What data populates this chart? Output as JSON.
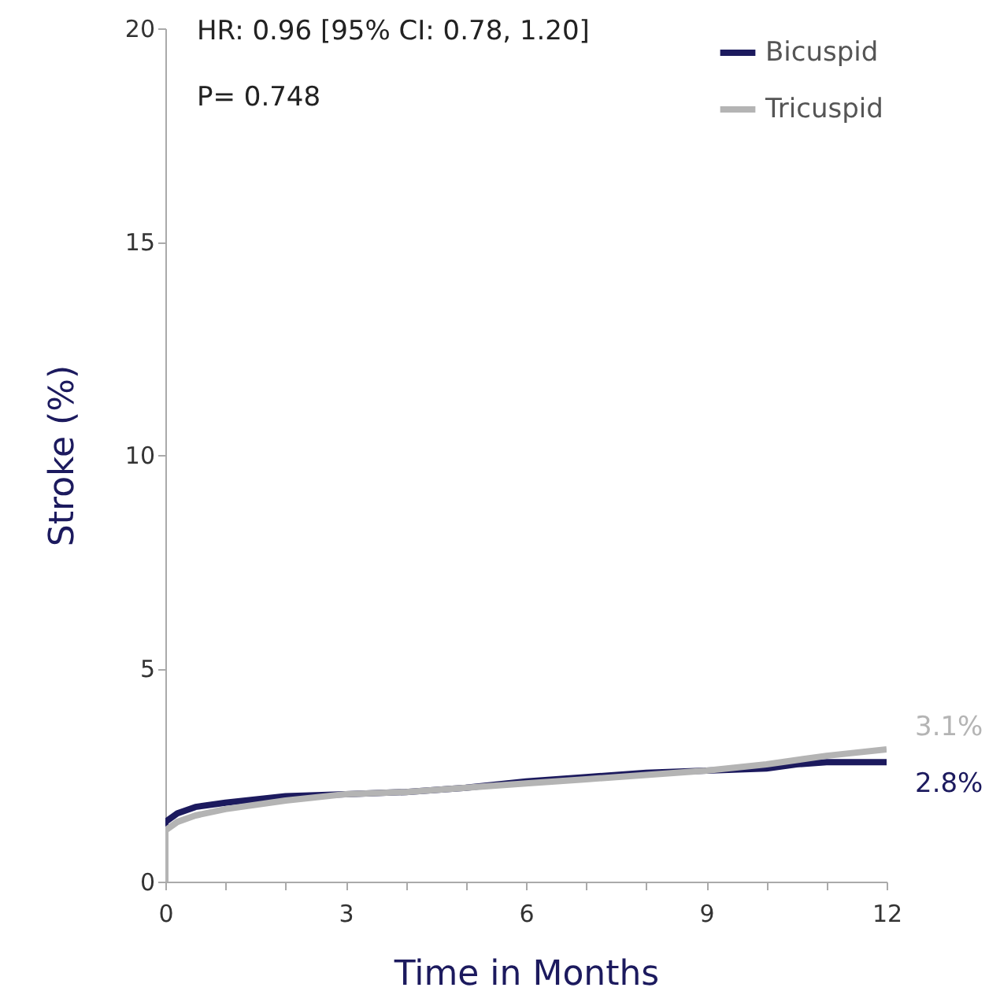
{
  "chart_data": {
    "type": "line",
    "xlabel": "Time in Months",
    "ylabel": "Stroke (%)",
    "annotations": [
      "HR: 0.96 [95% CI: 0.78, 1.20]",
      "P= 0.748",
      {
        "text": "3.1%",
        "x": 12,
        "y": 3.1
      },
      {
        "text": "2.8%",
        "x": 12,
        "y": 2.8
      }
    ],
    "xlim": [
      0,
      12
    ],
    "ylim": [
      0,
      20
    ],
    "xticks": [
      0,
      {
        "value": 1,
        "label": null
      },
      {
        "value": 2,
        "label": null
      },
      3,
      {
        "value": 4,
        "label": null
      },
      {
        "value": 5,
        "label": null
      },
      6,
      {
        "value": 7,
        "label": null
      },
      {
        "value": 8,
        "label": null
      },
      9,
      {
        "value": 10,
        "label": null
      },
      {
        "value": 11,
        "label": null
      },
      12
    ],
    "yticks": [
      0,
      5,
      10,
      15,
      20
    ],
    "grid": false,
    "legend": "top right",
    "marker": "none",
    "line_style": "solid",
    "series": [
      {
        "name": "Bicuspid",
        "color": "#1c1a5e",
        "x": [
          0,
          0,
          0.2,
          0.5,
          1,
          2,
          3,
          4,
          5,
          6,
          7,
          8,
          9,
          10,
          10.5,
          11,
          12
        ],
        "values": [
          0,
          1.4,
          1.6,
          1.75,
          1.85,
          2.0,
          2.05,
          2.1,
          2.2,
          2.35,
          2.45,
          2.55,
          2.6,
          2.65,
          2.75,
          2.8,
          2.8
        ]
      },
      {
        "name": "Tricuspid",
        "color": "#b4b4b4",
        "x": [
          0,
          0,
          0.2,
          0.5,
          1,
          2,
          3,
          4,
          5,
          6,
          7,
          8,
          9,
          10,
          11,
          12
        ],
        "values": [
          0,
          1.2,
          1.4,
          1.55,
          1.7,
          1.9,
          2.05,
          2.1,
          2.2,
          2.3,
          2.4,
          2.5,
          2.6,
          2.75,
          2.95,
          3.1
        ]
      }
    ]
  }
}
